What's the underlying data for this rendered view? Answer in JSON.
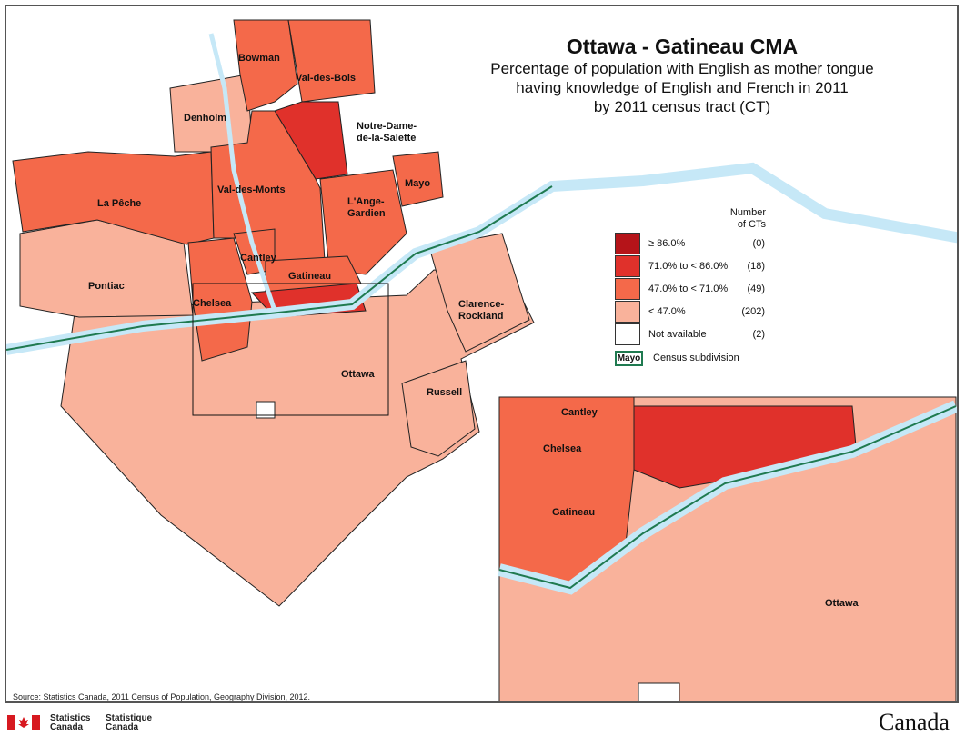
{
  "title": "Ottawa - Gatineau CMA",
  "subtitle_lines": [
    "Percentage of population with English as mother tongue",
    "having knowledge of English and French in 2011",
    "by 2011 census tract (CT)"
  ],
  "legend": {
    "header": [
      "Number",
      "of CTs"
    ],
    "classes": [
      {
        "label": "≥ 86.0%",
        "count": "(0)",
        "color": "#b51419"
      },
      {
        "label": "71.0% to < 86.0%",
        "count": "(18)",
        "color": "#e0312b"
      },
      {
        "label": "47.0% to < 71.0%",
        "count": "(49)",
        "color": "#f4694a"
      },
      {
        "label": "< 47.0%",
        "count": "(202)",
        "color": "#f9b29b"
      },
      {
        "label": "Not available",
        "count": "(2)",
        "color": "#ffffff"
      }
    ],
    "boundary_sample": "Mayo",
    "boundary_label": "Census subdivision",
    "boundary_color": "#1f7a50"
  },
  "water_color": "#c6e8f7",
  "places": {
    "bowman": "Bowman",
    "val_des_bois": "Val-des-Bois",
    "denholm": "Denholm",
    "notre_dame_1": "Notre-Dame-",
    "notre_dame_2": "de-la-Salette",
    "la_peche": "La Pêche",
    "val_des_monts": "Val-des-Monts",
    "mayo": "Mayo",
    "ange_1": "L'Ange-",
    "ange_2": "Gardien",
    "cantley": "Cantley",
    "gatineau": "Gatineau",
    "pontiac": "Pontiac",
    "chelsea": "Chelsea",
    "clarence_1": "Clarence-",
    "clarence_2": "Rockland",
    "ottawa": "Ottawa",
    "russell": "Russell"
  },
  "inset_places": {
    "cantley": "Cantley",
    "chelsea": "Chelsea",
    "gatineau": "Gatineau",
    "ottawa": "Ottawa"
  },
  "source": "Source: Statistics Canada, 2011 Census of Population, Geography Division, 2012.",
  "footer": {
    "en_1": "Statistics",
    "en_2": "Canada",
    "fr_1": "Statistique",
    "fr_2": "Canada",
    "wordmark": "Canada"
  }
}
